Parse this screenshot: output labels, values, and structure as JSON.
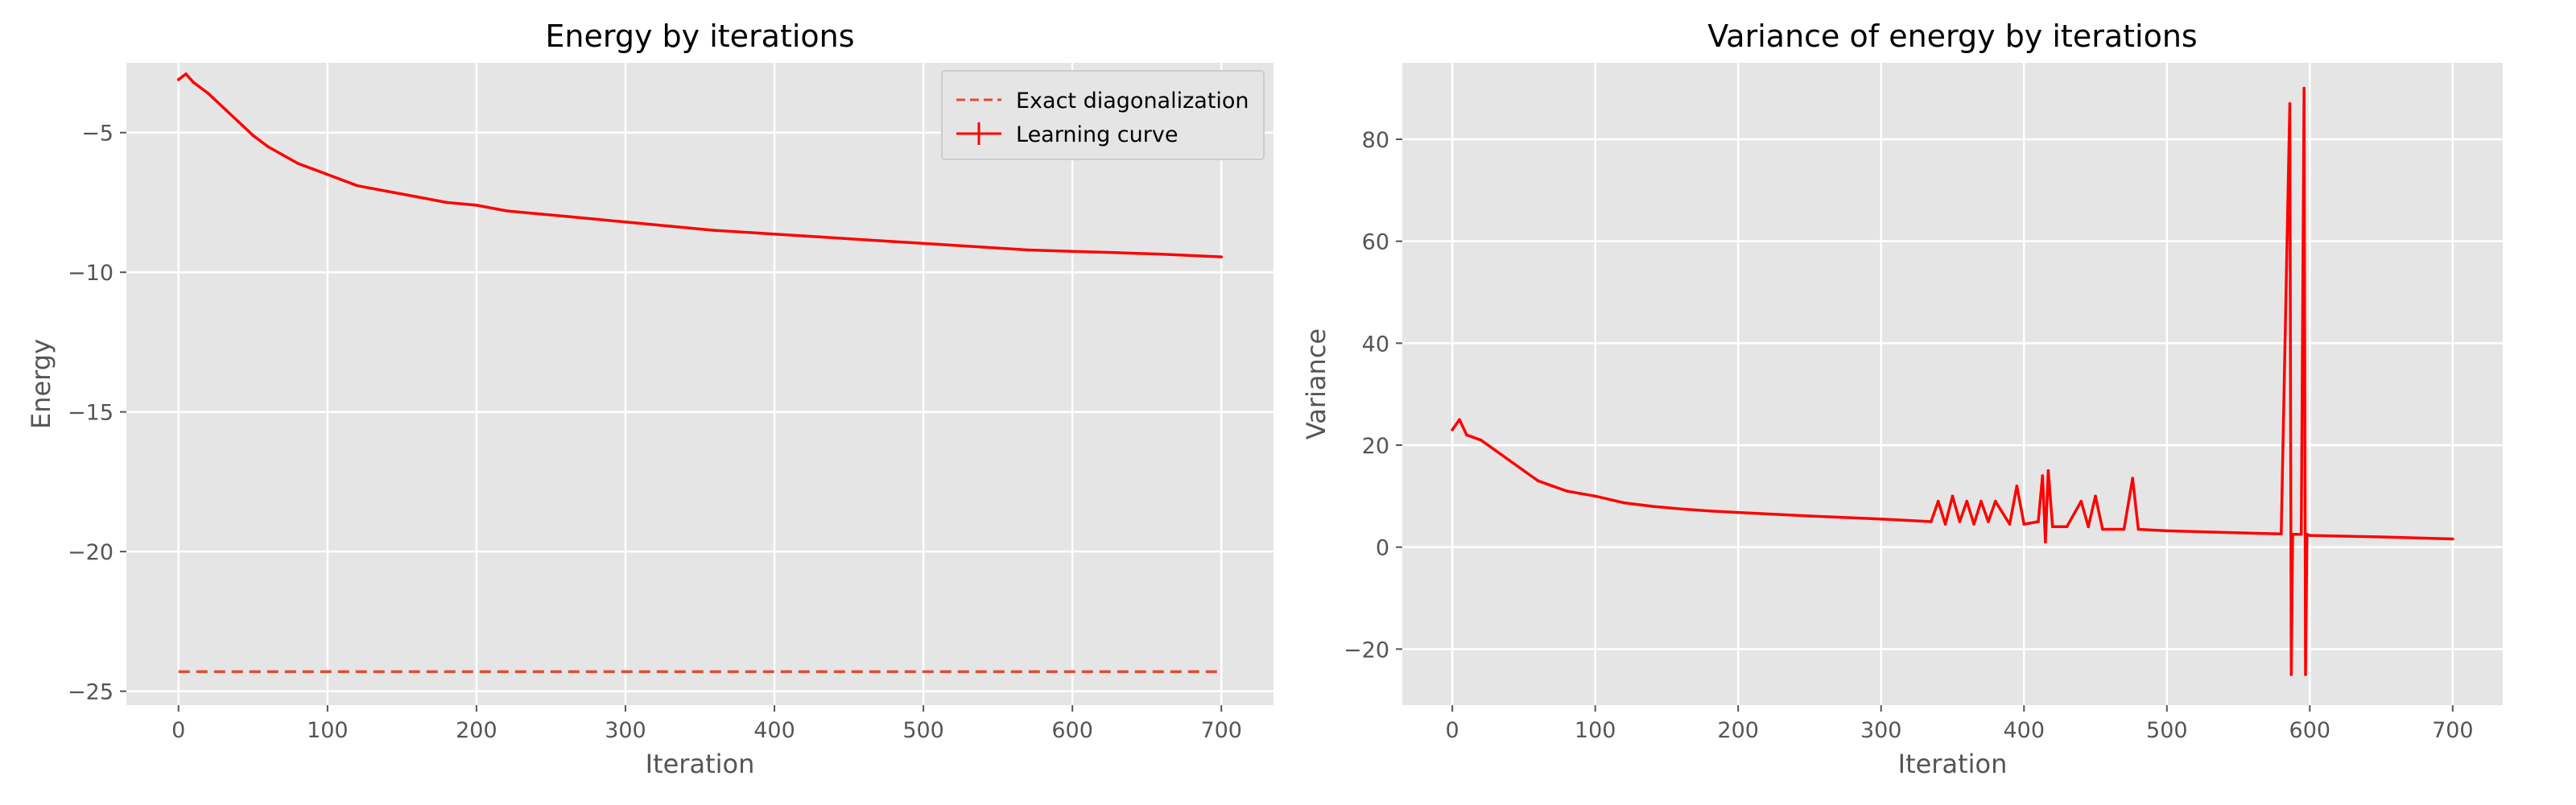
{
  "chart_data": [
    {
      "type": "line",
      "title": "Energy by iterations",
      "xlabel": "Iteration",
      "ylabel": "Energy",
      "xlim": [
        -35,
        735
      ],
      "ylim": [
        -25.5,
        -2.5
      ],
      "xticks": [
        0,
        100,
        200,
        300,
        400,
        500,
        600,
        700
      ],
      "yticks": [
        -25,
        -20,
        -15,
        -10,
        -5
      ],
      "ytick_labels": [
        "−25",
        "−20",
        "−15",
        "−10",
        "−5"
      ],
      "grid": true,
      "legend": "top-right",
      "series": [
        {
          "name": "Exact diagonalization",
          "style": "dashed",
          "color": "#E24A33",
          "x": [
            0,
            700
          ],
          "values": [
            -24.3,
            -24.3
          ]
        },
        {
          "name": "Learning curve",
          "style": "solid-errorbar",
          "color": "#FF0000",
          "x": [
            0,
            5,
            10,
            20,
            30,
            40,
            50,
            60,
            70,
            80,
            90,
            100,
            120,
            140,
            160,
            180,
            200,
            220,
            240,
            260,
            280,
            300,
            330,
            360,
            390,
            420,
            450,
            480,
            510,
            540,
            570,
            600,
            630,
            660,
            700
          ],
          "values": [
            -3.1,
            -2.9,
            -3.2,
            -3.6,
            -4.1,
            -4.6,
            -5.1,
            -5.5,
            -5.8,
            -6.1,
            -6.3,
            -6.5,
            -6.9,
            -7.1,
            -7.3,
            -7.5,
            -7.6,
            -7.8,
            -7.9,
            -8.0,
            -8.1,
            -8.2,
            -8.35,
            -8.5,
            -8.6,
            -8.7,
            -8.8,
            -8.9,
            -9.0,
            -9.1,
            -9.2,
            -9.25,
            -9.3,
            -9.35,
            -9.45
          ]
        }
      ]
    },
    {
      "type": "line",
      "title": "Variance of energy by iterations",
      "xlabel": "Iteration",
      "ylabel": "Variance",
      "xlim": [
        -35,
        735
      ],
      "ylim": [
        -31,
        95
      ],
      "xticks": [
        0,
        100,
        200,
        300,
        400,
        500,
        600,
        700
      ],
      "yticks": [
        -20,
        0,
        20,
        40,
        60,
        80
      ],
      "ytick_labels": [
        "−20",
        "0",
        "20",
        "40",
        "60",
        "80"
      ],
      "grid": true,
      "series": [
        {
          "color": "#FF0000",
          "x": [
            0,
            5,
            10,
            20,
            30,
            40,
            50,
            60,
            70,
            80,
            90,
            100,
            120,
            140,
            160,
            180,
            200,
            250,
            300,
            335,
            340,
            345,
            350,
            355,
            360,
            365,
            370,
            375,
            380,
            390,
            395,
            400,
            410,
            413,
            415,
            417,
            420,
            430,
            440,
            445,
            450,
            455,
            460,
            470,
            476,
            480,
            500,
            550,
            580,
            586,
            587,
            588,
            590,
            594,
            596,
            597,
            598,
            600,
            650,
            700
          ],
          "values": [
            23,
            25,
            22,
            21,
            19,
            17,
            15,
            13,
            12,
            11,
            10.5,
            10,
            8.7,
            8,
            7.5,
            7.1,
            6.8,
            6.1,
            5.5,
            5,
            9,
            4.5,
            10,
            5,
            9,
            4.5,
            9,
            5,
            9,
            4.5,
            12,
            4.5,
            5,
            14,
            1,
            15,
            4,
            4,
            9,
            4,
            10,
            3.5,
            3.5,
            3.5,
            13.5,
            3.5,
            3.2,
            2.8,
            2.6,
            87,
            -25,
            2.5,
            2.5,
            2.5,
            90,
            -25,
            2.5,
            2.3,
            2,
            1.6
          ]
        }
      ]
    }
  ]
}
